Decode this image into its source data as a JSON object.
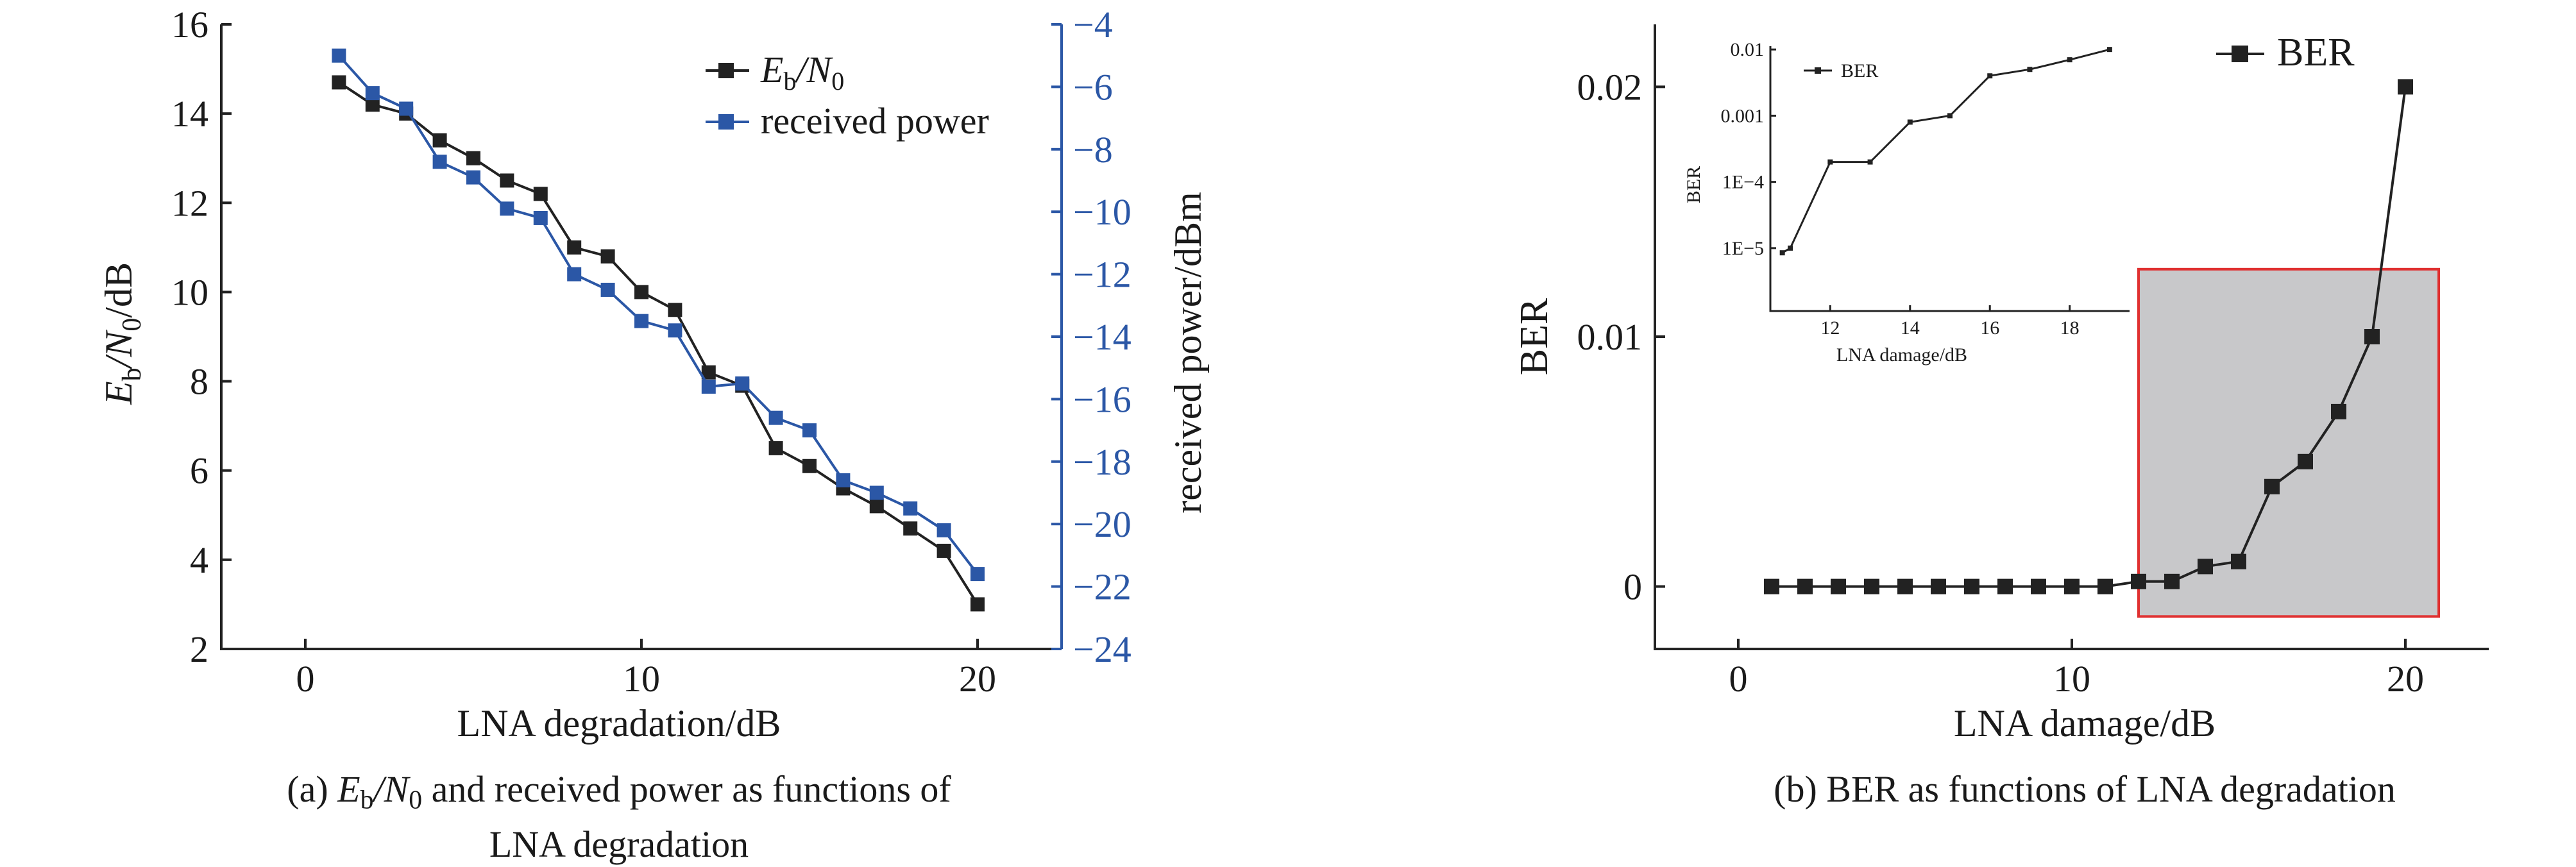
{
  "panel_a": {
    "caption_prefix": "(a)",
    "caption_rest": "and received power as functions of",
    "caption_line2": "LNA degradation"
  },
  "panel_b": {
    "caption": "(b) BER as functions of LNA degradation"
  },
  "colors": {
    "black_series": "#222222",
    "blue_series": "#2b57a6",
    "highlight_fill": "#c8c8ca",
    "highlight_border": "#e03030"
  },
  "chart_data": [
    {
      "id": "a",
      "type": "line",
      "xlabel": "LNA degradation/dB",
      "xticks": [
        "0",
        "10",
        "20"
      ],
      "xlim": [
        -2.5,
        22.5
      ],
      "left_axis": {
        "label_var": "E",
        "label_sub": "b",
        "label_mid": "/N",
        "label_sub2": "0",
        "label_unit": "/dB",
        "ylim": [
          2,
          16
        ],
        "ticks": [
          "2",
          "4",
          "6",
          "8",
          "10",
          "12",
          "14",
          "16"
        ]
      },
      "right_axis": {
        "label": "received power/dBm",
        "ylim": [
          -24,
          -4
        ],
        "ticks": [
          "−24",
          "−22",
          "−20",
          "−18",
          "−16",
          "−14",
          "−12",
          "−10",
          "−8",
          "−6",
          "−4"
        ]
      },
      "legend_position": "top-right",
      "series": [
        {
          "legend_var": "E",
          "legend_sub": "b",
          "legend_mid": "/N",
          "legend_sub2": "0",
          "axis": "left",
          "x": [
            1,
            2,
            3,
            4,
            5,
            6,
            7,
            8,
            9,
            10,
            11,
            12,
            13,
            14,
            15,
            16,
            17,
            18,
            19,
            20
          ],
          "values": [
            14.7,
            14.2,
            14.0,
            13.4,
            13.0,
            12.5,
            12.2,
            11.0,
            10.8,
            10.0,
            9.6,
            8.2,
            7.9,
            6.5,
            6.1,
            5.6,
            5.2,
            4.7,
            4.2,
            3.0
          ]
        },
        {
          "name": "received power",
          "axis": "right",
          "x": [
            1,
            2,
            3,
            4,
            5,
            6,
            7,
            8,
            9,
            10,
            11,
            12,
            13,
            14,
            15,
            16,
            17,
            18,
            19,
            20
          ],
          "values": [
            -5.0,
            -6.2,
            -6.7,
            -8.4,
            -8.9,
            -9.9,
            -10.2,
            -12.0,
            -12.5,
            -13.5,
            -13.8,
            -15.6,
            -15.5,
            -16.6,
            -17.0,
            -18.6,
            -19.0,
            -19.5,
            -20.2,
            -21.6
          ]
        }
      ]
    },
    {
      "id": "b",
      "type": "line",
      "xlabel": "LNA damage/dB",
      "ylabel": "BER",
      "xticks": [
        "0",
        "10",
        "20"
      ],
      "yticks": [
        "0",
        "0.01",
        "0.02"
      ],
      "xlim": [
        -2.5,
        22.5
      ],
      "ylim": [
        -0.0025,
        0.0225
      ],
      "legend_position": "top-right",
      "highlight_region": {
        "x": [
          12,
          21
        ],
        "y": [
          -0.0012,
          0.0127
        ]
      },
      "series": [
        {
          "name": "BER",
          "x": [
            1,
            2,
            3,
            4,
            5,
            6,
            7,
            8,
            9,
            10,
            11,
            12,
            13,
            14,
            15,
            16,
            17,
            18,
            19,
            20
          ],
          "values": [
            0,
            0,
            0,
            0,
            0,
            0,
            0,
            0,
            0,
            0,
            0,
            0.0002,
            0.0002,
            0.0008,
            0.001,
            0.004,
            0.005,
            0.007,
            0.01,
            0.02
          ]
        }
      ],
      "inset": {
        "type": "line",
        "xlabel": "LNA damage/dB",
        "ylabel": "BER",
        "xticks": [
          "12",
          "14",
          "16",
          "18"
        ],
        "yticks": [
          "1E−5",
          "1E−4",
          "0.001",
          "0.01"
        ],
        "xlim": [
          10.5,
          19.5
        ],
        "ylim_log10": [
          -5.95,
          -1.95
        ],
        "yscale": "log",
        "legend_position": "top-left",
        "series": [
          {
            "name": "BER",
            "x": [
              10.8,
              11,
              12,
              13,
              14,
              15,
              16,
              17,
              18,
              19
            ],
            "values": [
              8.5e-06,
              1e-05,
              0.0002,
              0.0002,
              0.0008,
              0.001,
              0.004,
              0.005,
              0.007,
              0.01
            ]
          }
        ]
      }
    }
  ]
}
